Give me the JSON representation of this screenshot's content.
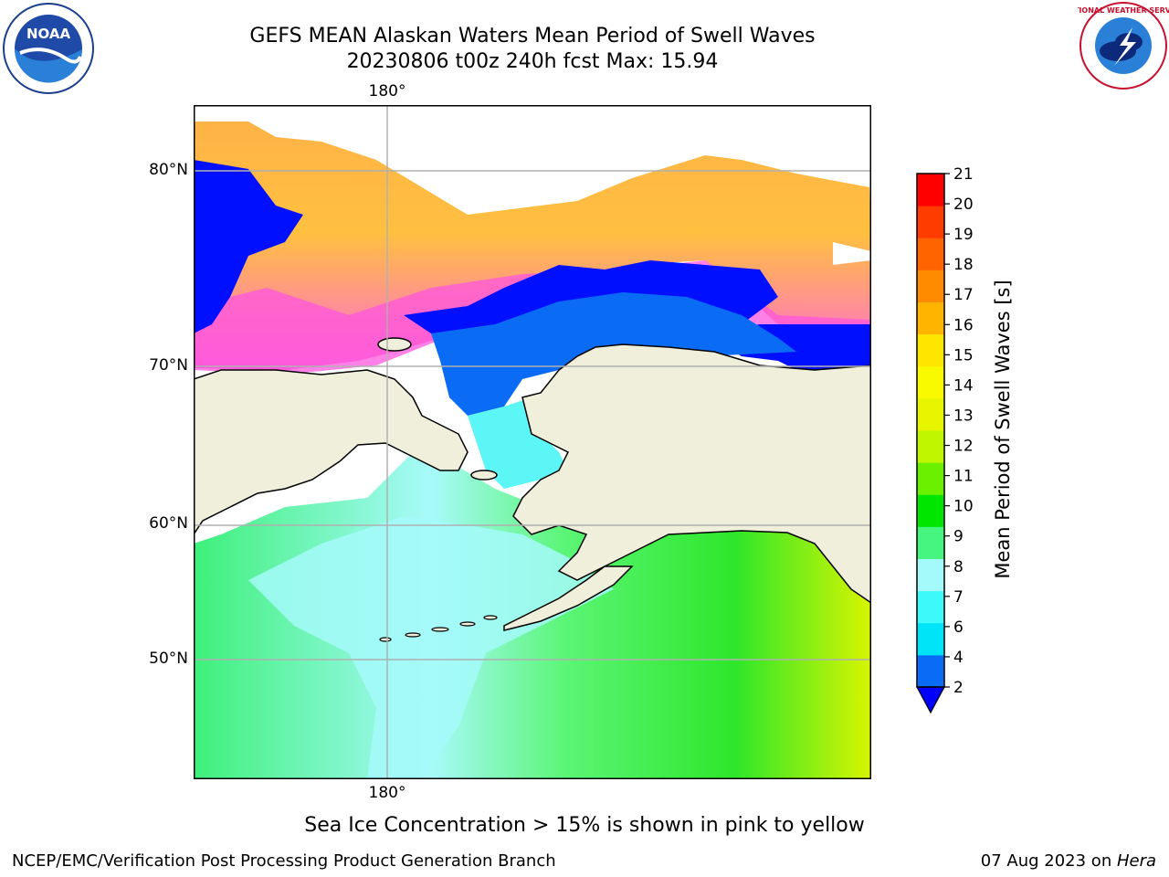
{
  "title": {
    "line1": "GEFS MEAN Alaskan Waters Mean Period of Swell Waves",
    "line2": "20230806 t00z 240h fcst   Max: 15.94"
  },
  "map": {
    "lon_labels": {
      "top": "180°",
      "bottom": "180°"
    },
    "lat_labels": [
      "80°N",
      "70°N",
      "60°N",
      "50°N"
    ],
    "gridlines": true,
    "land_color": "#efefdc",
    "ocean_fill_note_hidden": true
  },
  "colorbar": {
    "label": "Mean Period of Swell Waves [s]",
    "ticks": [
      "21",
      "20",
      "19",
      "18",
      "17",
      "16",
      "15",
      "14",
      "13",
      "12",
      "11",
      "10",
      "9",
      "8",
      "7",
      "6",
      "4",
      "2"
    ],
    "tick_values": [
      21,
      20,
      19,
      18,
      17,
      16,
      15,
      14,
      13,
      12,
      11,
      10,
      9,
      8,
      7,
      6,
      4,
      2
    ],
    "colors": [
      "#0a6cf5",
      "#00e4f7",
      "#3ef9f9",
      "#a4fafa",
      "#46f580",
      "#00e600",
      "#6bf000",
      "#c0f700",
      "#e8f500",
      "#f9f900",
      "#ffe600",
      "#ffb400",
      "#ff8c00",
      "#ff6400",
      "#ff3c00",
      "#ff0000"
    ],
    "extend_color": "#0000ff"
  },
  "caption": "Sea Ice Concentration > 15% is shown in pink to yellow",
  "footer": {
    "left": "NCEP/EMC/Verification Post Processing Product Generation Branch",
    "right_date": "07 Aug 2023 on ",
    "right_host": "Hera"
  },
  "logos": {
    "noaa_text": "NOAA",
    "nws_text": "NATIONAL WEATHER SERVICE"
  }
}
